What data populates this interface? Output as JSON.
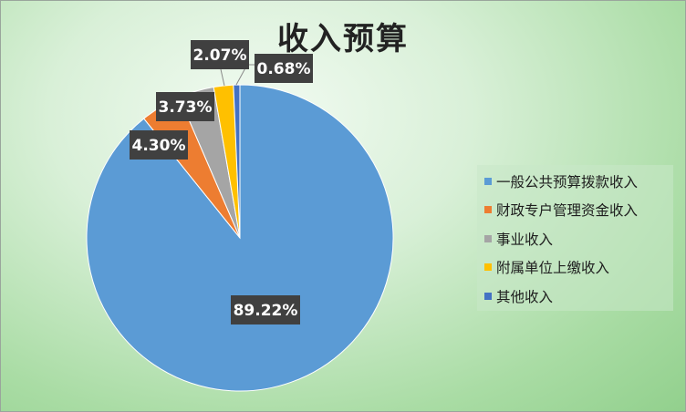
{
  "chart_data": {
    "type": "pie",
    "title": "收入预算",
    "start_angle_deg": 0,
    "slices": [
      {
        "name": "一般公共预算拨款收入",
        "value": 89.22,
        "label": "89.22%",
        "color": "#5b9bd5"
      },
      {
        "name": "财政专户管理资金收入",
        "value": 4.3,
        "label": "4.30%",
        "color": "#ed7d31"
      },
      {
        "name": "事业收入",
        "value": 3.73,
        "label": "3.73%",
        "color": "#a5a5a5"
      },
      {
        "name": "附属单位上缴收入",
        "value": 2.07,
        "label": "2.07%",
        "color": "#ffc000"
      },
      {
        "name": "其他收入",
        "value": 0.68,
        "label": "0.68%",
        "color": "#4472c4"
      }
    ],
    "legend_position": "right"
  }
}
